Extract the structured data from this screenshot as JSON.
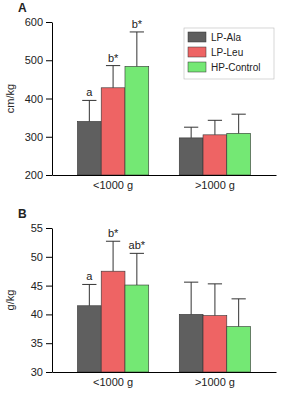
{
  "chart_data": [
    {
      "type": "bar",
      "title": "A",
      "y_label": "cm/kg",
      "categories": [
        "<1000 g",
        ">1000 g"
      ],
      "ylim": [
        200,
        600
      ],
      "yticks": [
        200,
        300,
        400,
        500,
        600
      ],
      "legend": "upper right",
      "series": [
        {
          "name": "LP-Ala",
          "color": "#5f5f5f",
          "values": [
            340,
            297
          ],
          "errors": [
            55,
            28
          ],
          "significance": [
            "a",
            null
          ]
        },
        {
          "name": "LP-Leu",
          "color": "#ee6464",
          "values": [
            428,
            305
          ],
          "errors": [
            58,
            38
          ],
          "significance": [
            "b*",
            null
          ]
        },
        {
          "name": "HP-Control",
          "color": "#74e874",
          "values": [
            484,
            309
          ],
          "errors": [
            90,
            50
          ],
          "significance": [
            "b*",
            null
          ]
        }
      ]
    },
    {
      "type": "bar",
      "title": "B",
      "y_label": "g/kg",
      "categories": [
        "<1000 g",
        ">1000 g"
      ],
      "ylim": [
        30,
        55
      ],
      "yticks": [
        30,
        35,
        40,
        45,
        50,
        55
      ],
      "series": [
        {
          "name": "LP-Ala",
          "color": "#5f5f5f",
          "values": [
            41.5,
            40
          ],
          "errors": [
            3.7,
            5.6
          ],
          "significance": [
            "a",
            null
          ]
        },
        {
          "name": "LP-Leu",
          "color": "#ee6464",
          "values": [
            47.5,
            39.8
          ],
          "errors": [
            5.2,
            5.5
          ],
          "significance": [
            "b*",
            null
          ]
        },
        {
          "name": "HP-Control",
          "color": "#74e874",
          "values": [
            45.1,
            37.9
          ],
          "errors": [
            5.5,
            4.8
          ],
          "significance": [
            "ab*",
            null
          ]
        }
      ]
    }
  ]
}
